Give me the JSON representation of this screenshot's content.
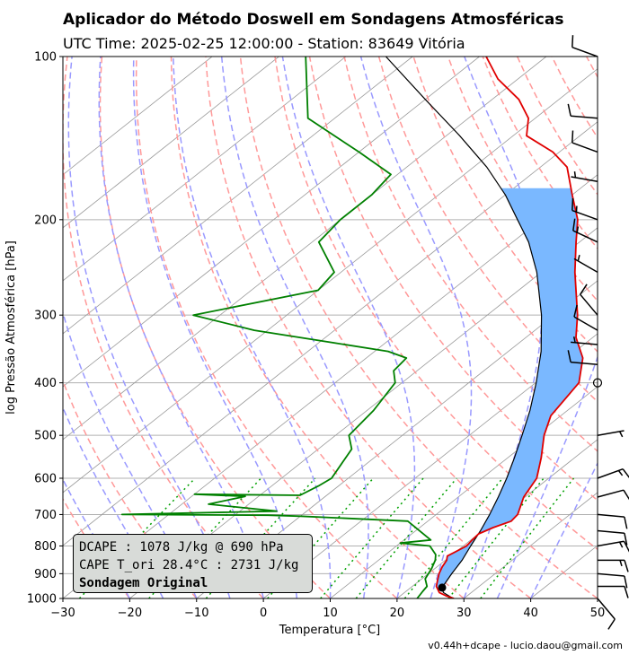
{
  "header": {
    "title": "Aplicador do Método Doswell em Sondagens Atmosféricas",
    "subtitle": "UTC Time: 2025-02-25 12:00:00 - Station: 83649 Vitória"
  },
  "legend": {
    "dcape": "DCAPE : 1078 J/kg @ 690 hPa",
    "cape": "CAPE T_ori 28.4°C : 2731 J/kg",
    "label": "Sondagem Original"
  },
  "footer": "v0.44h+dcape  -  lucio.daou@gmail.com",
  "colors": {
    "temperature": "#e00000",
    "dewpoint": "#008000",
    "parcel": "#000000",
    "cape_fill": "#7ab8ff",
    "isotherm": "#9a9a9a",
    "dry_adiabat": "#ff9999",
    "moist_adiabat": "#9999ff",
    "mixing_ratio": "#00a000"
  },
  "chart_data": {
    "type": "line",
    "xlabel": "Temperatura [°C]",
    "ylabel": "log Pressão Atmosférica [hPa]",
    "xlim": [
      -30,
      50
    ],
    "ylim": [
      1000,
      100
    ],
    "log_y": true,
    "grid": true,
    "x_ticks": [
      -30,
      -20,
      -10,
      0,
      10,
      20,
      30,
      40,
      50
    ],
    "y_ticks": [
      100,
      200,
      300,
      400,
      500,
      600,
      700,
      800,
      900,
      1000
    ],
    "series": [
      {
        "key": "temperature",
        "points": [
          [
            1000,
            28.5
          ],
          [
            990,
            27
          ],
          [
            975,
            25.2
          ],
          [
            950,
            23.6
          ],
          [
            925,
            22.6
          ],
          [
            900,
            21.6
          ],
          [
            875,
            20.8
          ],
          [
            850,
            20.2
          ],
          [
            835,
            19.5
          ],
          [
            800,
            20.5
          ],
          [
            780,
            20.2
          ],
          [
            760,
            20
          ],
          [
            740,
            21
          ],
          [
            720,
            22.5
          ],
          [
            700,
            22.2
          ],
          [
            650,
            19.8
          ],
          [
            600,
            18.2
          ],
          [
            550,
            15
          ],
          [
            500,
            11.2
          ],
          [
            460,
            8.5
          ],
          [
            400,
            6.5
          ],
          [
            360,
            2.4
          ],
          [
            330,
            -2.5
          ],
          [
            300,
            -6.5
          ],
          [
            250,
            -15
          ],
          [
            220,
            -20.5
          ],
          [
            200,
            -24.5
          ],
          [
            180,
            -30
          ],
          [
            160,
            -36
          ],
          [
            150,
            -41
          ],
          [
            140,
            -48
          ],
          [
            130,
            -51
          ],
          [
            120,
            -56
          ],
          [
            110,
            -63
          ],
          [
            100,
            -69
          ]
        ]
      },
      {
        "key": "dewpoint",
        "points": [
          [
            1000,
            23
          ],
          [
            970,
            22.5
          ],
          [
            950,
            22.2
          ],
          [
            920,
            20.5
          ],
          [
            880,
            19.5
          ],
          [
            850,
            18.5
          ],
          [
            830,
            17.5
          ],
          [
            800,
            15
          ],
          [
            790,
            10
          ],
          [
            780,
            14
          ],
          [
            720,
            7
          ],
          [
            705,
            -10
          ],
          [
            702,
            -15
          ],
          [
            700,
            -37
          ],
          [
            690,
            -14.5
          ],
          [
            670,
            -26
          ],
          [
            648,
            -22
          ],
          [
            642,
            -30
          ],
          [
            645,
            -14
          ],
          [
            620,
            -13
          ],
          [
            600,
            -12.5
          ],
          [
            530,
            -15
          ],
          [
            500,
            -18
          ],
          [
            450,
            -19
          ],
          [
            400,
            -21
          ],
          [
            380,
            -23.5
          ],
          [
            360,
            -24
          ],
          [
            350,
            -28
          ],
          [
            320,
            -52
          ],
          [
            300,
            -64
          ],
          [
            270,
            -50
          ],
          [
            250,
            -51
          ],
          [
            220,
            -59
          ],
          [
            200,
            -60
          ],
          [
            180,
            -60
          ],
          [
            165,
            -61
          ],
          [
            150,
            -70
          ],
          [
            130,
            -84
          ],
          [
            100,
            -96
          ]
        ]
      },
      {
        "key": "parcel",
        "points": [
          [
            1000,
            28.4
          ],
          [
            975,
            25.8
          ],
          [
            955,
            24.7
          ],
          [
            900,
            23.5
          ],
          [
            850,
            22.5
          ],
          [
            800,
            21.1
          ],
          [
            750,
            19.7
          ],
          [
            700,
            18
          ],
          [
            650,
            16
          ],
          [
            600,
            13.7
          ],
          [
            550,
            11
          ],
          [
            500,
            7.9
          ],
          [
            450,
            4.4
          ],
          [
            400,
            0.1
          ],
          [
            350,
            -5.1
          ],
          [
            300,
            -11.9
          ],
          [
            250,
            -20.7
          ],
          [
            220,
            -27.6
          ],
          [
            200,
            -33.5
          ],
          [
            180,
            -40
          ],
          [
            160,
            -48
          ],
          [
            140,
            -58
          ],
          [
            120,
            -70
          ],
          [
            100,
            -84
          ]
        ]
      }
    ],
    "cape_region": {
      "bottom_hPa": 955,
      "top_hPa": 175
    },
    "marker": {
      "pressure_hPa": 955,
      "temperature_C": 24.7
    },
    "wind_barbs": [
      {
        "p": 1000,
        "dir": 140,
        "spd": 10
      },
      {
        "p": 950,
        "dir": 90,
        "spd": 10
      },
      {
        "p": 900,
        "dir": 95,
        "spd": 10
      },
      {
        "p": 850,
        "dir": 90,
        "spd": 15
      },
      {
        "p": 800,
        "dir": 80,
        "spd": 15
      },
      {
        "p": 750,
        "dir": 95,
        "spd": 10
      },
      {
        "p": 700,
        "dir": 95,
        "spd": 10
      },
      {
        "p": 650,
        "dir": 75,
        "spd": 10
      },
      {
        "p": 600,
        "dir": 70,
        "spd": 15
      },
      {
        "p": 500,
        "dir": 80,
        "spd": 5
      },
      {
        "p": 400,
        "dir": 0,
        "spd": 0
      },
      {
        "p": 370,
        "dir": 275,
        "spd": 10
      },
      {
        "p": 340,
        "dir": 275,
        "spd": 5
      },
      {
        "p": 320,
        "dir": 300,
        "spd": 10
      },
      {
        "p": 300,
        "dir": 320,
        "spd": 10
      },
      {
        "p": 250,
        "dir": 300,
        "spd": 5
      },
      {
        "p": 220,
        "dir": 295,
        "spd": 15
      },
      {
        "p": 200,
        "dir": 290,
        "spd": 15
      },
      {
        "p": 170,
        "dir": 280,
        "spd": 5
      },
      {
        "p": 150,
        "dir": 290,
        "spd": 10
      },
      {
        "p": 130,
        "dir": 275,
        "spd": 10
      },
      {
        "p": 100,
        "dir": 290,
        "spd": 10
      }
    ]
  }
}
